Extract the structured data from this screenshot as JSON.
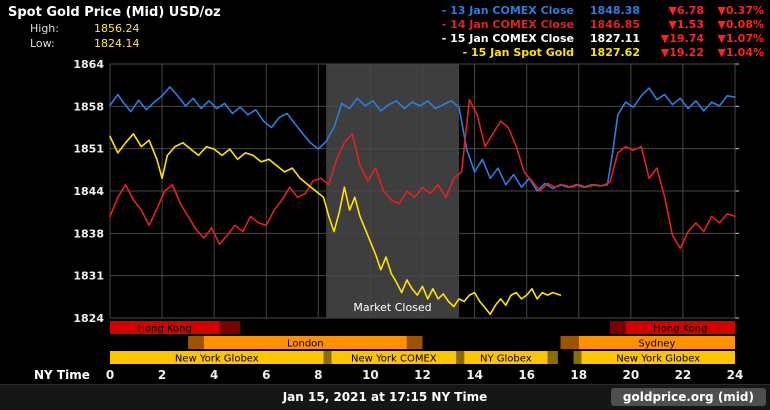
{
  "colors": {
    "down": "#ff2222",
    "blue": "#2a7fde",
    "red": "#e02222",
    "yellow": "#ffe300",
    "white": "#ffffff"
  },
  "header": {
    "title": "Spot Gold Price (Mid) USD/oz",
    "high_label": "High:",
    "high_value": "1856.24",
    "low_label": "Low:",
    "low_value": "1824.14"
  },
  "legend": [
    {
      "label": "- 13 Jan COMEX Close",
      "value": "1848.38",
      "change": "▼6.78",
      "pct": "▼0.37%",
      "color": "#2a7fde"
    },
    {
      "label": "- 14 Jan COMEX Close",
      "value": "1846.85",
      "change": "▼1.53",
      "pct": "▼0.08%",
      "color": "#e02222"
    },
    {
      "label": "- 15 Jan COMEX Close",
      "value": "1827.11",
      "change": "▼19.74",
      "pct": "▼1.07%",
      "color": "#ffffff"
    },
    {
      "label": "- 15 Jan Spot Gold",
      "value": "1827.62",
      "change": "▼19.22",
      "pct": "▼1.04%",
      "color": "#ffe300"
    }
  ],
  "footer": {
    "datetime": "Jan 15, 2021 at 17:15 NY Time",
    "source": "goldprice.org (mid)"
  },
  "chart_data": {
    "type": "line",
    "title": "Spot Gold Price (Mid) USD/oz",
    "x_axis_label": "NY Time",
    "x_range": [
      0,
      24
    ],
    "x_ticks": [
      0,
      2,
      4,
      6,
      8,
      10,
      12,
      14,
      16,
      18,
      20,
      22,
      24
    ],
    "y_range": [
      1824,
      1864
    ],
    "y_labels": [
      "1864",
      "1858",
      "1851",
      "1844",
      "1838",
      "1831",
      "1824"
    ],
    "high": 1856.24,
    "low": 1824.14,
    "grid": true,
    "legend_position": "top-right",
    "market_closed": {
      "start": 8.3,
      "end": 13.4,
      "label": "Market Closed"
    },
    "series": [
      {
        "name": "13 Jan COMEX Close",
        "color": "#2a7fde",
        "points": [
          [
            0,
            1857.5
          ],
          [
            0.3,
            1859.2
          ],
          [
            0.5,
            1858
          ],
          [
            0.8,
            1856.5
          ],
          [
            1.1,
            1858.3
          ],
          [
            1.4,
            1856.8
          ],
          [
            1.7,
            1858
          ],
          [
            2,
            1859
          ],
          [
            2.3,
            1860.4
          ],
          [
            2.6,
            1859
          ],
          [
            2.9,
            1857.4
          ],
          [
            3.2,
            1858.6
          ],
          [
            3.5,
            1857
          ],
          [
            3.8,
            1858.2
          ],
          [
            4.1,
            1857
          ],
          [
            4.4,
            1857.8
          ],
          [
            4.7,
            1856.2
          ],
          [
            5,
            1857.2
          ],
          [
            5.3,
            1856
          ],
          [
            5.6,
            1856.8
          ],
          [
            5.9,
            1855
          ],
          [
            6.2,
            1854
          ],
          [
            6.5,
            1855.6
          ],
          [
            6.8,
            1856.2
          ],
          [
            7.1,
            1854.6
          ],
          [
            7.4,
            1853
          ],
          [
            7.7,
            1851.6
          ],
          [
            8,
            1850.6
          ],
          [
            8.3,
            1851.8
          ],
          [
            8.6,
            1854
          ],
          [
            8.9,
            1857.8
          ],
          [
            9.2,
            1857
          ],
          [
            9.5,
            1858.6
          ],
          [
            9.8,
            1857.4
          ],
          [
            10.1,
            1858.2
          ],
          [
            10.4,
            1856.6
          ],
          [
            10.7,
            1857.6
          ],
          [
            11,
            1858.2
          ],
          [
            11.3,
            1857
          ],
          [
            11.6,
            1858
          ],
          [
            11.9,
            1857.4
          ],
          [
            12.2,
            1858.2
          ],
          [
            12.5,
            1857
          ],
          [
            12.8,
            1857.6
          ],
          [
            13.1,
            1858.2
          ],
          [
            13.4,
            1857.2
          ],
          [
            13.7,
            1850.5
          ],
          [
            14,
            1847
          ],
          [
            14.3,
            1849
          ],
          [
            14.6,
            1846
          ],
          [
            14.9,
            1847.6
          ],
          [
            15.2,
            1845
          ],
          [
            15.5,
            1846.6
          ],
          [
            15.8,
            1844.6
          ],
          [
            16.1,
            1846
          ],
          [
            16.4,
            1844
          ],
          [
            16.7,
            1845.2
          ],
          [
            17,
            1844.4
          ],
          [
            17.3,
            1845
          ],
          [
            17.6,
            1844.6
          ],
          [
            17.9,
            1845
          ],
          [
            18.2,
            1844.6
          ],
          [
            18.5,
            1845
          ],
          [
            18.8,
            1844.8
          ],
          [
            19.1,
            1845
          ],
          [
            19.3,
            1850
          ],
          [
            19.5,
            1856
          ],
          [
            19.8,
            1858
          ],
          [
            20.1,
            1857.2
          ],
          [
            20.4,
            1859
          ],
          [
            20.7,
            1860.2
          ],
          [
            21,
            1858.4
          ],
          [
            21.3,
            1859.2
          ],
          [
            21.6,
            1857.6
          ],
          [
            21.9,
            1858.6
          ],
          [
            22.2,
            1857
          ],
          [
            22.5,
            1858.2
          ],
          [
            22.8,
            1856.6
          ],
          [
            23.1,
            1858
          ],
          [
            23.4,
            1857.4
          ],
          [
            23.7,
            1859
          ],
          [
            24,
            1858.8
          ]
        ]
      },
      {
        "name": "14 Jan COMEX Close",
        "color": "#e02222",
        "points": [
          [
            0,
            1840
          ],
          [
            0.3,
            1843
          ],
          [
            0.6,
            1845
          ],
          [
            0.9,
            1842.6
          ],
          [
            1.2,
            1841
          ],
          [
            1.5,
            1838.6
          ],
          [
            1.8,
            1841.2
          ],
          [
            2.1,
            1844
          ],
          [
            2.4,
            1845
          ],
          [
            2.7,
            1842
          ],
          [
            3,
            1840
          ],
          [
            3.3,
            1838
          ],
          [
            3.6,
            1836.6
          ],
          [
            3.9,
            1838.2
          ],
          [
            4.2,
            1835.6
          ],
          [
            4.5,
            1837
          ],
          [
            4.8,
            1838.6
          ],
          [
            5.1,
            1837.6
          ],
          [
            5.4,
            1840
          ],
          [
            5.7,
            1839
          ],
          [
            6,
            1838.6
          ],
          [
            6.3,
            1841
          ],
          [
            6.6,
            1842.6
          ],
          [
            6.9,
            1844.6
          ],
          [
            7.2,
            1843
          ],
          [
            7.5,
            1843.6
          ],
          [
            7.8,
            1845.6
          ],
          [
            8.1,
            1846
          ],
          [
            8.4,
            1845
          ],
          [
            8.7,
            1849
          ],
          [
            9,
            1851.6
          ],
          [
            9.3,
            1853
          ],
          [
            9.6,
            1848
          ],
          [
            9.9,
            1845.6
          ],
          [
            10.2,
            1847.6
          ],
          [
            10.5,
            1844
          ],
          [
            10.8,
            1842.6
          ],
          [
            11.1,
            1842
          ],
          [
            11.4,
            1844
          ],
          [
            11.7,
            1843
          ],
          [
            12,
            1844.6
          ],
          [
            12.3,
            1843.6
          ],
          [
            12.6,
            1845
          ],
          [
            12.9,
            1843
          ],
          [
            13.2,
            1846
          ],
          [
            13.5,
            1847
          ],
          [
            13.8,
            1858.4
          ],
          [
            14.1,
            1856
          ],
          [
            14.4,
            1851
          ],
          [
            14.7,
            1853
          ],
          [
            15,
            1855
          ],
          [
            15.3,
            1854
          ],
          [
            15.6,
            1851
          ],
          [
            15.9,
            1847
          ],
          [
            16.2,
            1845.6
          ],
          [
            16.5,
            1844
          ],
          [
            16.8,
            1845.2
          ],
          [
            17.1,
            1844.6
          ],
          [
            17.4,
            1845
          ],
          [
            17.7,
            1844.6
          ],
          [
            18,
            1845
          ],
          [
            18.3,
            1844.6
          ],
          [
            18.6,
            1845
          ],
          [
            18.9,
            1844.8
          ],
          [
            19.2,
            1845.4
          ],
          [
            19.5,
            1850
          ],
          [
            19.8,
            1851
          ],
          [
            20.1,
            1850.4
          ],
          [
            20.4,
            1851
          ],
          [
            20.7,
            1846
          ],
          [
            21,
            1847.6
          ],
          [
            21.3,
            1843
          ],
          [
            21.6,
            1837
          ],
          [
            21.9,
            1835
          ],
          [
            22.2,
            1837.6
          ],
          [
            22.5,
            1839
          ],
          [
            22.8,
            1837.6
          ],
          [
            23.1,
            1840
          ],
          [
            23.4,
            1839
          ],
          [
            23.7,
            1840.4
          ],
          [
            24,
            1840
          ]
        ]
      },
      {
        "name": "15 Jan Spot Gold",
        "color": "#ffe300",
        "points": [
          [
            0,
            1852.6
          ],
          [
            0.3,
            1850
          ],
          [
            0.6,
            1851.6
          ],
          [
            0.9,
            1853
          ],
          [
            1.2,
            1851
          ],
          [
            1.5,
            1852
          ],
          [
            1.8,
            1849
          ],
          [
            2,
            1846
          ],
          [
            2.2,
            1849.6
          ],
          [
            2.5,
            1851
          ],
          [
            2.8,
            1851.6
          ],
          [
            3.1,
            1850.6
          ],
          [
            3.4,
            1849.6
          ],
          [
            3.7,
            1851
          ],
          [
            4,
            1850.6
          ],
          [
            4.3,
            1849.6
          ],
          [
            4.6,
            1850.6
          ],
          [
            4.9,
            1849
          ],
          [
            5.2,
            1850
          ],
          [
            5.5,
            1849.6
          ],
          [
            5.8,
            1848.6
          ],
          [
            6.1,
            1849
          ],
          [
            6.4,
            1848
          ],
          [
            6.7,
            1847
          ],
          [
            7,
            1847.6
          ],
          [
            7.3,
            1846
          ],
          [
            7.6,
            1845
          ],
          [
            7.9,
            1844
          ],
          [
            8.2,
            1843
          ],
          [
            8.4,
            1840
          ],
          [
            8.6,
            1837.6
          ],
          [
            8.8,
            1840.6
          ],
          [
            9,
            1844.6
          ],
          [
            9.2,
            1841
          ],
          [
            9.4,
            1843
          ],
          [
            9.6,
            1840
          ],
          [
            9.8,
            1838
          ],
          [
            10,
            1836
          ],
          [
            10.2,
            1834
          ],
          [
            10.4,
            1831.6
          ],
          [
            10.6,
            1833.6
          ],
          [
            10.8,
            1831
          ],
          [
            11,
            1829.6
          ],
          [
            11.2,
            1828
          ],
          [
            11.4,
            1830
          ],
          [
            11.6,
            1828.6
          ],
          [
            11.8,
            1827.6
          ],
          [
            12,
            1829
          ],
          [
            12.2,
            1827
          ],
          [
            12.4,
            1828.6
          ],
          [
            12.6,
            1827
          ],
          [
            12.8,
            1827.8
          ],
          [
            13,
            1826.6
          ],
          [
            13.2,
            1825.8
          ],
          [
            13.4,
            1827
          ],
          [
            13.6,
            1826.6
          ],
          [
            13.8,
            1827.6
          ],
          [
            14,
            1828
          ],
          [
            14.2,
            1826.6
          ],
          [
            14.4,
            1825.6
          ],
          [
            14.6,
            1824.6
          ],
          [
            14.8,
            1826
          ],
          [
            15,
            1827
          ],
          [
            15.2,
            1826
          ],
          [
            15.4,
            1827.6
          ],
          [
            15.6,
            1828
          ],
          [
            15.8,
            1827
          ],
          [
            16,
            1827.6
          ],
          [
            16.2,
            1828.6
          ],
          [
            16.4,
            1827
          ],
          [
            16.6,
            1828
          ],
          [
            16.8,
            1827.6
          ],
          [
            17,
            1828
          ],
          [
            17.3,
            1827.6
          ]
        ]
      }
    ],
    "sessions": [
      {
        "name": "hong-kong-row",
        "segments": [
          {
            "start": 0,
            "end": 4.2,
            "color": "#d40000",
            "label": "Hong Kong"
          },
          {
            "start": 4.2,
            "end": 5.0,
            "color": "#7a0000",
            "label": ""
          },
          {
            "start": 19.2,
            "end": 19.8,
            "color": "#7a0000",
            "label": ""
          },
          {
            "start": 19.8,
            "end": 24,
            "color": "#d40000",
            "label": "Hong Kong"
          }
        ]
      },
      {
        "name": "london-sydney-row",
        "segments": [
          {
            "start": 3.0,
            "end": 3.6,
            "color": "#9c5400",
            "label": ""
          },
          {
            "start": 3.6,
            "end": 11.4,
            "color": "#ff9000",
            "label": "London"
          },
          {
            "start": 11.4,
            "end": 12.0,
            "color": "#9c5400",
            "label": ""
          },
          {
            "start": 17.3,
            "end": 18.0,
            "color": "#9c5400",
            "label": ""
          },
          {
            "start": 18.0,
            "end": 24,
            "color": "#ff9000",
            "label": "Sydney"
          }
        ]
      },
      {
        "name": "new-york-row",
        "segments": [
          {
            "start": 0,
            "end": 8.2,
            "color": "#ffc400",
            "label": "New York Globex"
          },
          {
            "start": 8.2,
            "end": 8.5,
            "color": "#8a6d00",
            "label": ""
          },
          {
            "start": 8.5,
            "end": 13.3,
            "color": "#ffc400",
            "label": "New York COMEX"
          },
          {
            "start": 13.3,
            "end": 13.6,
            "color": "#8a6d00",
            "label": ""
          },
          {
            "start": 13.6,
            "end": 16.8,
            "color": "#ffc400",
            "label": "NY Globex"
          },
          {
            "start": 16.8,
            "end": 17.2,
            "color": "#8a6d00",
            "label": ""
          },
          {
            "start": 17.8,
            "end": 18.1,
            "color": "#8a6d00",
            "label": ""
          },
          {
            "start": 18.1,
            "end": 24,
            "color": "#ffc400",
            "label": "New York Globex"
          }
        ]
      }
    ]
  }
}
